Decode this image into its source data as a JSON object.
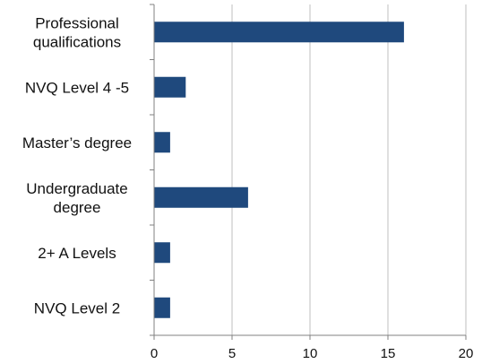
{
  "chart_data": {
    "type": "bar",
    "orientation": "horizontal",
    "title": "",
    "xlabel": "",
    "ylabel": "",
    "categories": [
      [
        "Professional",
        "qualifications"
      ],
      [
        "NVQ Level 4 -5"
      ],
      [
        "Master’s degree"
      ],
      [
        "Undergraduate",
        "degree"
      ],
      [
        "2+ A Levels"
      ],
      [
        "NVQ Level 2"
      ]
    ],
    "values": [
      16,
      2,
      1,
      6,
      1,
      1
    ],
    "xlim": [
      0,
      20
    ],
    "xticks": [
      "0",
      "5",
      "10",
      "15",
      "20"
    ],
    "grid": "vertical",
    "legend": "none",
    "bar_color": "#1F497D",
    "grid_color": "#BFBFBF",
    "axis_color": "#808080"
  }
}
